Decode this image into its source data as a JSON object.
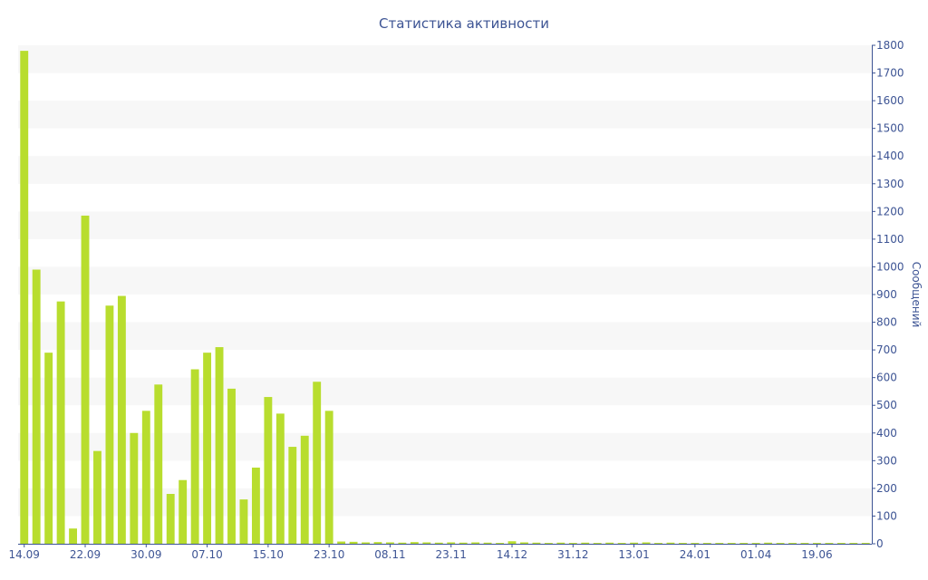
{
  "chart_data": {
    "type": "bar",
    "title": "Статистика активности",
    "xlabel": "",
    "ylabel": "Сообщений",
    "y_axis_side": "right",
    "ylim": [
      0,
      1800
    ],
    "y_ticks": [
      0,
      100,
      200,
      300,
      400,
      500,
      600,
      700,
      800,
      900,
      1000,
      1100,
      1200,
      1300,
      1400,
      1500,
      1600,
      1700,
      1800
    ],
    "x_tick_labels": [
      {
        "index": 0,
        "label": "14.09"
      },
      {
        "index": 5,
        "label": "22.09"
      },
      {
        "index": 10,
        "label": "30.09"
      },
      {
        "index": 15,
        "label": "07.10"
      },
      {
        "index": 20,
        "label": "15.10"
      },
      {
        "index": 25,
        "label": "23.10"
      },
      {
        "index": 30,
        "label": "08.11"
      },
      {
        "index": 35,
        "label": "23.11"
      },
      {
        "index": 40,
        "label": "14.12"
      },
      {
        "index": 45,
        "label": "31.12"
      },
      {
        "index": 50,
        "label": "13.01"
      },
      {
        "index": 55,
        "label": "24.01"
      },
      {
        "index": 60,
        "label": "01.04"
      },
      {
        "index": 65,
        "label": "19.06"
      }
    ],
    "values": [
      1780,
      990,
      690,
      875,
      55,
      1185,
      335,
      860,
      895,
      400,
      480,
      575,
      180,
      230,
      630,
      690,
      710,
      560,
      160,
      275,
      530,
      470,
      350,
      390,
      585,
      480,
      8,
      7,
      5,
      6,
      5,
      4,
      6,
      5,
      4,
      5,
      4,
      5,
      4,
      3,
      9,
      5,
      4,
      3,
      4,
      3,
      4,
      3,
      4,
      3,
      4,
      5,
      3,
      4,
      3,
      3,
      3,
      3,
      3,
      3,
      3,
      4,
      3,
      3,
      3,
      3,
      3,
      3,
      3,
      3
    ],
    "grid": "horizontal alternating bands",
    "legend": "none",
    "colors": {
      "bar": "#b8dd2e",
      "band": "#f7f7f7",
      "text": "#3d5494",
      "axis": "#3d5494"
    }
  }
}
